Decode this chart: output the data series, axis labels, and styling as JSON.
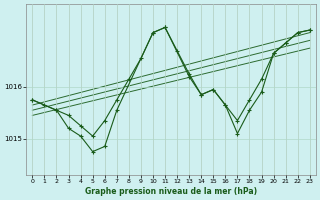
{
  "title": "Graphe pression niveau de la mer (hPa)",
  "background_color": "#cff0f0",
  "grid_color": "#b0d8c8",
  "line_color": "#1a5c1a",
  "x_ticks": [
    0,
    1,
    2,
    3,
    4,
    5,
    6,
    7,
    8,
    9,
    10,
    11,
    12,
    13,
    14,
    15,
    16,
    17,
    18,
    19,
    20,
    21,
    22,
    23
  ],
  "ylim": [
    1014.3,
    1017.6
  ],
  "yticks": [
    1015,
    1016
  ],
  "series1_x": [
    0,
    1,
    2,
    3,
    4,
    5,
    6,
    7,
    8,
    9,
    10,
    11,
    12,
    13,
    14,
    15,
    16,
    17,
    18,
    19,
    20,
    21,
    22,
    23
  ],
  "series1_y": [
    1015.75,
    1015.65,
    1015.55,
    1015.45,
    1015.25,
    1015.05,
    1015.35,
    1015.75,
    1016.15,
    1016.55,
    1017.05,
    1017.15,
    1016.7,
    1016.25,
    1015.85,
    1015.95,
    1015.65,
    1015.35,
    1015.75,
    1016.15,
    1016.65,
    1016.85,
    1017.05,
    1017.1
  ],
  "series2_x": [
    0,
    2,
    3,
    4,
    5,
    6,
    7,
    10,
    11,
    13,
    14,
    15,
    16,
    17,
    18,
    19,
    20,
    21,
    22,
    23
  ],
  "series2_y": [
    1015.75,
    1015.55,
    1015.2,
    1015.05,
    1014.75,
    1014.85,
    1015.55,
    1017.05,
    1017.15,
    1016.2,
    1015.85,
    1015.95,
    1015.65,
    1015.1,
    1015.55,
    1015.9,
    1016.65,
    1016.85,
    1017.05,
    1017.1
  ],
  "trend_lines": [
    {
      "x": [
        0,
        23
      ],
      "y": [
        1015.55,
        1016.9
      ]
    },
    {
      "x": [
        0,
        23
      ],
      "y": [
        1015.65,
        1017.05
      ]
    },
    {
      "x": [
        0,
        23
      ],
      "y": [
        1015.45,
        1016.75
      ]
    }
  ]
}
